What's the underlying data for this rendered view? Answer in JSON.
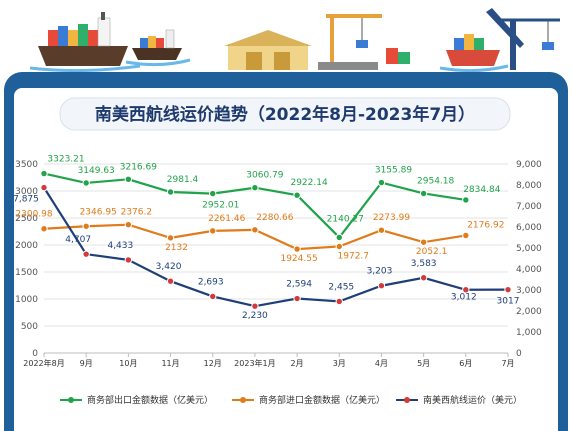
{
  "chart_data": {
    "type": "line",
    "title": "南美西航线运价趋势（2022年8月-2023年7月）",
    "categories": [
      "2022年8月",
      "9月",
      "10月",
      "11月",
      "12月",
      "2023年1月",
      "2月",
      "3月",
      "4月",
      "5月",
      "6月",
      "7月"
    ],
    "y_left_ticks": [
      "0",
      "500",
      "1000",
      "1500",
      "2000",
      "2500",
      "3000",
      "3500"
    ],
    "y_right_ticks": [
      "0",
      "1,000",
      "2,000",
      "3,000",
      "4,000",
      "5,000",
      "6,000",
      "7,000",
      "8,000",
      "9,000"
    ],
    "ylim_left": [
      0,
      3500
    ],
    "ylim_right": [
      0,
      9000
    ],
    "grid": true,
    "legend_position": "bottom",
    "series": [
      {
        "name": "商务部出口金额数据（亿美元）",
        "axis": "left",
        "color": "#21a34a",
        "values": [
          3323.21,
          3149.63,
          3216.69,
          2981.4,
          2952.01,
          3060.79,
          2922.14,
          2140.27,
          3155.89,
          2954.18,
          2834.84,
          null
        ],
        "labels": [
          "3323.21",
          "3149.63",
          "3216.69",
          "2981.4",
          "2952.01",
          "3060.79",
          "2922.14",
          "2140.27",
          "3155.89",
          "2954.18",
          "2834.84",
          ""
        ]
      },
      {
        "name": "商务部进口金额数据（亿美元）",
        "axis": "left",
        "color": "#e07b1a",
        "values": [
          2300.98,
          2346.95,
          2376.2,
          2132,
          2261.46,
          2280.66,
          1924.55,
          1972.7,
          2273.99,
          2052.1,
          2176.92,
          null
        ],
        "labels": [
          "2300.98",
          "2346.95",
          "2376.2",
          "2132",
          "2261.46",
          "2280.66",
          "1924.55",
          "1972.7",
          "2273.99",
          "2052.1",
          "2176.92",
          ""
        ]
      },
      {
        "name": "南美西航线运价（美元）",
        "axis": "right",
        "color": "#1f3f7a",
        "values": [
          7875,
          4707,
          4433,
          3420,
          2693,
          2230,
          2594,
          2455,
          3203,
          3583,
          3012,
          3017
        ],
        "labels": [
          "7,875",
          "4,707",
          "4,433",
          "3,420",
          "2,693",
          "2,230",
          "2,594",
          "2,455",
          "3,203",
          "3,583",
          "3,012",
          "3017"
        ]
      }
    ]
  },
  "colors": {
    "panel": "#1f5f9a",
    "title": "#1e3a6e",
    "green_marker": "#7ccf5a",
    "orange_marker": "#a8d36a",
    "navy_marker": "#d13b3b"
  }
}
